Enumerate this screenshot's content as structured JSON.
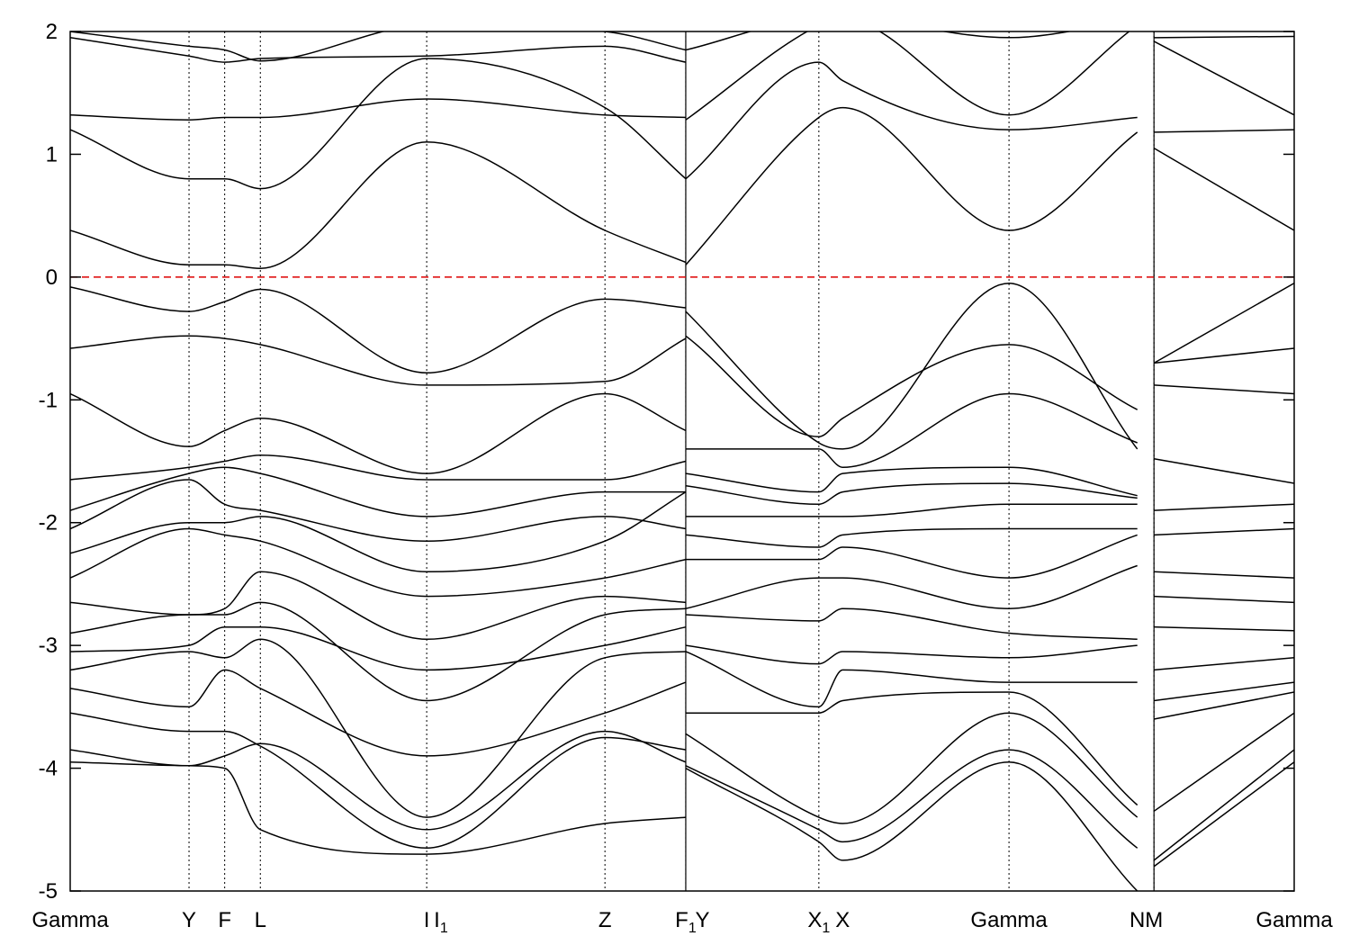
{
  "chart_data": {
    "type": "line",
    "title": "",
    "xlabel": "",
    "ylabel": "",
    "ylim": [
      -5,
      2
    ],
    "yticks": [
      2,
      1,
      0,
      -1,
      -2,
      -3,
      -4,
      -5
    ],
    "grid": false,
    "fermi_level": {
      "value": 0,
      "color": "#dd0000",
      "style": "dashed"
    },
    "kpoints": [
      {
        "label": "Gamma",
        "x": 0.0
      },
      {
        "label": "Y",
        "x": 1.0
      },
      {
        "label": "F",
        "x": 1.3
      },
      {
        "label": "L",
        "x": 1.6
      },
      {
        "label": "I",
        "x": 3.0
      },
      {
        "label": "I",
        "sub": "1",
        "x": 3.12
      },
      {
        "label": "Z",
        "x": 4.5
      },
      {
        "label": "F",
        "sub": "1",
        "x": 5.18
      },
      {
        "label": "Y",
        "x": 5.32
      },
      {
        "label": "X",
        "sub": "1",
        "x": 6.3
      },
      {
        "label": "X",
        "x": 6.5
      },
      {
        "label": "Gamma",
        "x": 7.9
      },
      {
        "label": "N",
        "x": 8.98
      },
      {
        "label": "M",
        "x": 9.12
      },
      {
        "label": "Gamma",
        "x": 10.3
      }
    ],
    "vlines": [
      1.0,
      1.3,
      1.6,
      3.0,
      4.5,
      5.18,
      6.3,
      7.9,
      9.12
    ],
    "breaks": [
      5.18,
      9.12
    ],
    "segments": [
      {
        "x": [
          0.0,
          1.0,
          1.3,
          1.6,
          3.0,
          4.5,
          5.18
        ],
        "bands": [
          [
            -3.95,
            -3.98,
            -4.0,
            -4.5,
            -4.7,
            -4.45,
            -4.4
          ],
          [
            -3.85,
            -3.98,
            -3.9,
            -3.8,
            -4.5,
            -3.7,
            -3.95
          ],
          [
            -3.55,
            -3.7,
            -3.7,
            -3.82,
            -4.65,
            -3.75,
            -3.85
          ],
          [
            -3.35,
            -3.5,
            -3.2,
            -3.35,
            -3.9,
            -3.55,
            -3.3
          ],
          [
            -3.2,
            -3.05,
            -3.1,
            -2.95,
            -4.4,
            -3.1,
            -3.05
          ],
          [
            -3.05,
            -3.0,
            -2.85,
            -2.85,
            -3.2,
            -3.0,
            -2.85
          ],
          [
            -2.9,
            -2.75,
            -2.75,
            -2.65,
            -3.45,
            -2.75,
            -2.7
          ],
          [
            -2.65,
            -2.75,
            -2.7,
            -2.4,
            -2.95,
            -2.6,
            -2.65
          ],
          [
            -2.45,
            -2.05,
            -2.1,
            -2.15,
            -2.6,
            -2.45,
            -2.3
          ],
          [
            -2.25,
            -2.0,
            -2.0,
            -1.95,
            -2.4,
            -2.15,
            -1.75
          ],
          [
            -2.05,
            -1.65,
            -1.85,
            -1.9,
            -2.15,
            -1.95,
            -2.05
          ],
          [
            -1.9,
            -1.6,
            -1.55,
            -1.6,
            -1.95,
            -1.75,
            -1.75
          ],
          [
            -1.65,
            -1.55,
            -1.5,
            -1.45,
            -1.65,
            -1.65,
            -1.5
          ],
          [
            -0.95,
            -1.38,
            -1.25,
            -1.15,
            -1.6,
            -0.95,
            -1.25
          ],
          [
            -0.58,
            -0.48,
            -0.5,
            -0.55,
            -0.88,
            -0.85,
            -0.5
          ],
          [
            -0.08,
            -0.28,
            -0.2,
            -0.1,
            -0.78,
            -0.18,
            -0.25
          ],
          [
            0.38,
            0.1,
            0.1,
            0.07,
            1.1,
            0.38,
            0.12
          ],
          [
            1.2,
            0.8,
            0.8,
            0.72,
            1.78,
            1.38,
            0.8
          ],
          [
            1.32,
            1.28,
            1.3,
            1.3,
            1.45,
            1.32,
            1.3
          ],
          [
            1.95,
            1.8,
            1.75,
            1.78,
            1.8,
            1.88,
            1.75
          ],
          [
            2.0,
            1.88,
            1.85,
            1.76,
            2.05,
            2.0,
            1.85
          ]
        ]
      },
      {
        "x": [
          5.18,
          6.3,
          6.5,
          7.9,
          8.98
        ],
        "bands": [
          [
            -4.0,
            -4.6,
            -4.75,
            -3.95,
            -5.0
          ],
          [
            -3.98,
            -4.5,
            -4.6,
            -3.85,
            -4.65
          ],
          [
            -3.72,
            -4.4,
            -4.45,
            -3.55,
            -4.4
          ],
          [
            -3.55,
            -3.55,
            -3.45,
            -3.38,
            -4.3
          ],
          [
            -3.05,
            -3.5,
            -3.2,
            -3.3,
            -3.3
          ],
          [
            -3.0,
            -3.15,
            -3.05,
            -3.1,
            -3.0
          ],
          [
            -2.75,
            -2.8,
            -2.7,
            -2.9,
            -2.95
          ],
          [
            -2.7,
            -2.45,
            -2.45,
            -2.7,
            -2.35
          ],
          [
            -2.3,
            -2.3,
            -2.2,
            -2.45,
            -2.1
          ],
          [
            -2.1,
            -2.2,
            -2.1,
            -2.05,
            -2.05
          ],
          [
            -1.95,
            -1.95,
            -1.95,
            -1.85,
            -1.85
          ],
          [
            -1.7,
            -1.85,
            -1.75,
            -1.68,
            -1.8
          ],
          [
            -1.6,
            -1.75,
            -1.6,
            -1.55,
            -1.78
          ],
          [
            -1.4,
            -1.4,
            -1.55,
            -0.95,
            -1.35
          ],
          [
            -0.48,
            -1.3,
            -1.15,
            -0.55,
            -1.08
          ],
          [
            -0.28,
            -1.35,
            -1.4,
            -0.05,
            -1.4
          ],
          [
            0.1,
            1.3,
            1.38,
            0.38,
            1.18
          ],
          [
            0.8,
            1.75,
            1.6,
            1.2,
            1.3
          ],
          [
            1.28,
            2.05,
            2.1,
            1.32,
            2.05
          ],
          [
            1.85,
            2.1,
            2.1,
            1.95,
            2.1
          ]
        ]
      },
      {
        "x": [
          9.12,
          10.3
        ],
        "bands": [
          [
            -4.8,
            -3.95
          ],
          [
            -4.75,
            -3.85
          ],
          [
            -4.35,
            -3.55
          ],
          [
            -3.6,
            -3.38
          ],
          [
            -3.45,
            -3.3
          ],
          [
            -3.2,
            -3.1
          ],
          [
            -2.85,
            -2.88
          ],
          [
            -2.6,
            -2.65
          ],
          [
            -2.4,
            -2.45
          ],
          [
            -2.1,
            -2.05
          ],
          [
            -1.9,
            -1.85
          ],
          [
            -1.48,
            -1.68
          ],
          [
            -0.88,
            -0.95
          ],
          [
            -0.7,
            -0.58
          ],
          [
            -0.7,
            -0.05
          ],
          [
            1.05,
            0.38
          ],
          [
            1.18,
            1.2
          ],
          [
            1.92,
            1.32
          ],
          [
            1.95,
            1.96
          ]
        ]
      }
    ]
  }
}
